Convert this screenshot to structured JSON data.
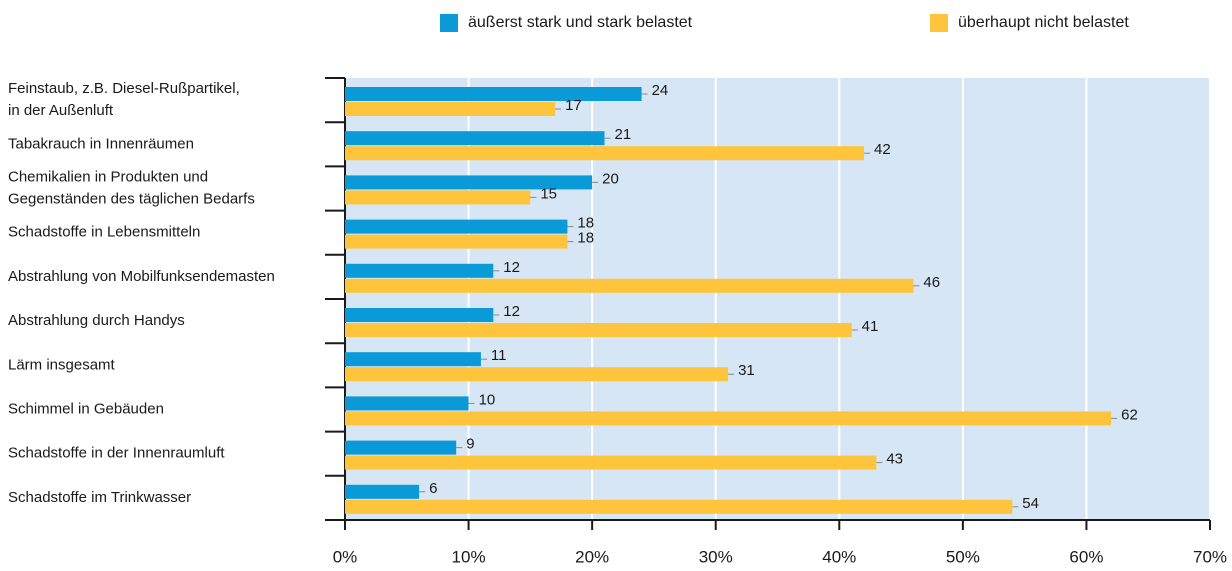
{
  "chart_data": {
    "type": "bar",
    "orientation": "horizontal",
    "categories": [
      "Feinstaub, z.B. Diesel-Rußpartikel,\nin der Außenluft",
      "Tabakrauch in Innenräumen",
      "Chemikalien in Produkten und\nGegenständen des täglichen Bedarfs",
      "Schadstoffe in Lebensmitteln",
      "Abstrahlung von Mobilfunksendemasten",
      "Abstrahlung durch Handys",
      "Lärm insgesamt",
      "Schimmel in Gebäuden",
      "Schadstoffe in der Innenraumluft",
      "Schadstoffe im Trinkwasser"
    ],
    "series": [
      {
        "name": "äußerst stark und stark belastet",
        "color": "#0a9ad7",
        "values": [
          24,
          21,
          20,
          18,
          12,
          12,
          11,
          10,
          9,
          6
        ]
      },
      {
        "name": "überhaupt nicht belastet",
        "color": "#fdc43c",
        "values": [
          17,
          42,
          15,
          18,
          46,
          41,
          31,
          62,
          43,
          54
        ]
      }
    ],
    "xlim": [
      0,
      70
    ],
    "xticks": [
      {
        "value": 0,
        "label": "0%"
      },
      {
        "value": 10,
        "label": "10%"
      },
      {
        "value": 20,
        "label": "20%"
      },
      {
        "value": 30,
        "label": "30%"
      },
      {
        "value": 40,
        "label": "40%"
      },
      {
        "value": 50,
        "label": "50%"
      },
      {
        "value": 60,
        "label": "60%"
      },
      {
        "value": 70,
        "label": "70%"
      }
    ],
    "grid": true
  }
}
